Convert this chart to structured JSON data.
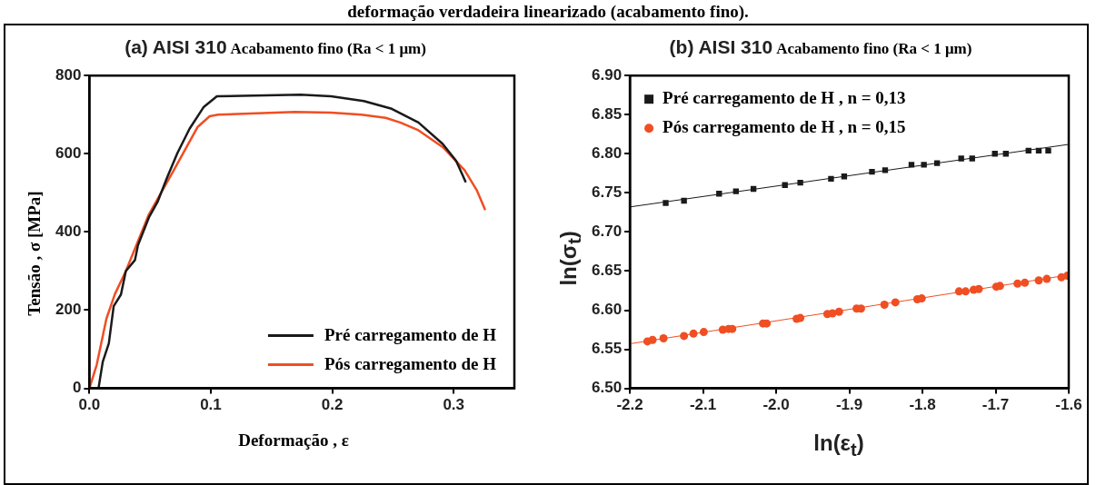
{
  "chart_data": [
    {
      "type": "line",
      "title": "(a) AISI 310",
      "subtitle": "Acabamento fino (Ra < 1 μm)",
      "xlabel": "Deformação , ε",
      "ylabel": "Tensão , σ [MPa]",
      "annotations": [
        "deformação verdadeira linearizado (acabamento fino)."
      ],
      "xlim": [
        0,
        0.35
      ],
      "xticks": [
        {
          "value": 0,
          "label": "0.0"
        },
        0.1,
        0.2,
        0.3
      ],
      "ylim": [
        0,
        800
      ],
      "yticks": [
        0,
        200,
        400,
        600,
        800
      ],
      "grid": false,
      "legend": "bottom right",
      "marker": "none",
      "line_style": "solid",
      "series": [
        {
          "name": "Pré carregamento de H",
          "color": "#1a1a1a",
          "x": [
            0.0075,
            0.011,
            0.016,
            0.02,
            0.026,
            0.03,
            0.0375,
            0.04,
            0.049,
            0.056,
            0.064,
            0.0725,
            0.0825,
            0.094,
            0.105,
            0.174,
            0.199,
            0.226,
            0.249,
            0.271,
            0.291,
            0.302,
            0.31
          ],
          "values": [
            0,
            68,
            115,
            210,
            240,
            300,
            328,
            366,
            437,
            476,
            539,
            602,
            664,
            719,
            747,
            751,
            747,
            735,
            715,
            680,
            625,
            582,
            527
          ]
        },
        {
          "name": "Pós carregamento de H",
          "color": "#f04e23",
          "x": [
            0,
            0.006,
            0.014,
            0.021,
            0.03,
            0.049,
            0.069,
            0.089,
            0.099,
            0.106,
            0.169,
            0.199,
            0.224,
            0.244,
            0.256,
            0.271,
            0.291,
            0.309,
            0.319,
            0.326
          ],
          "values": [
            0,
            60,
            178,
            241,
            300,
            445,
            555,
            668,
            696,
            700,
            707,
            705,
            700,
            692,
            680,
            660,
            617,
            558,
            507,
            456
          ]
        }
      ]
    },
    {
      "type": "scatter",
      "title": "(b) AISI 310",
      "subtitle": "Acabamento fino (Ra < 1 μm)",
      "xlabel": "ln(ε$_{t}$)",
      "ylabel": "ln(σ$_{t}$)",
      "xlim": [
        -2.2,
        -1.6
      ],
      "xticks": [
        -2.2,
        -2.1,
        {
          "value": -2.0,
          "label": "-2.0"
        },
        -1.9,
        -1.8,
        -1.7,
        -1.6
      ],
      "ylim": [
        6.5,
        6.9
      ],
      "yticks": [
        {
          "value": 6.5,
          "label": "6.50"
        },
        6.55,
        {
          "value": 6.6,
          "label": "6.60"
        },
        6.65,
        {
          "value": 6.7,
          "label": "6.70"
        },
        6.75,
        {
          "value": 6.8,
          "label": "6.80"
        },
        6.85,
        {
          "value": 6.9,
          "label": "6.90"
        }
      ],
      "grid": false,
      "legend": "top left",
      "series": [
        {
          "name": "Pré carregamento de H , n = 0,13",
          "color": "#1a1a1a",
          "marker": "square",
          "x": [
            -2.151,
            -2.126,
            -2.078,
            -2.055,
            -2.031,
            -1.988,
            -1.967,
            -1.925,
            -1.907,
            -1.869,
            -1.851,
            -1.815,
            -1.798,
            -1.78,
            -1.747,
            -1.732,
            -1.701,
            -1.686,
            -1.655,
            -1.641,
            -1.628
          ],
          "values": [
            6.737,
            6.74,
            6.749,
            6.752,
            6.755,
            6.76,
            6.763,
            6.768,
            6.771,
            6.777,
            6.779,
            6.786,
            6.786,
            6.788,
            6.794,
            6.794,
            6.8,
            6.8,
            6.804,
            6.804,
            6.804
          ]
        },
        {
          "name": "Pós carregamento de H , n = 0,15",
          "color": "#f04e23",
          "marker": "circle",
          "x": [
            -2.176,
            -2.169,
            -2.154,
            -2.126,
            -2.113,
            -2.099,
            -2.073,
            -2.065,
            -2.06,
            -2.018,
            -2.013,
            -1.972,
            -1.967,
            -1.93,
            -1.923,
            -1.914,
            -1.89,
            -1.884,
            -1.852,
            -1.837,
            -1.807,
            -1.801,
            -1.75,
            -1.741,
            -1.73,
            -1.723,
            -1.699,
            -1.694,
            -1.67,
            -1.66,
            -1.641,
            -1.63,
            -1.61,
            -1.602
          ],
          "values": [
            6.56,
            6.562,
            6.564,
            6.567,
            6.57,
            6.572,
            6.575,
            6.576,
            6.576,
            6.583,
            6.583,
            6.589,
            6.59,
            6.595,
            6.596,
            6.598,
            6.602,
            6.602,
            6.607,
            6.61,
            6.614,
            6.615,
            6.624,
            6.624,
            6.626,
            6.627,
            6.63,
            6.631,
            6.634,
            6.635,
            6.638,
            6.64,
            6.642,
            6.644
          ]
        },
        {
          "type": "line",
          "color": "#1a1a1a",
          "x": [
            -2.2,
            -1.6
          ],
          "values": [
            6.732,
            6.812
          ]
        },
        {
          "type": "line",
          "color": "#f04e23",
          "x": [
            -2.2,
            -1.6
          ],
          "values": [
            6.557,
            6.645
          ]
        }
      ]
    }
  ]
}
